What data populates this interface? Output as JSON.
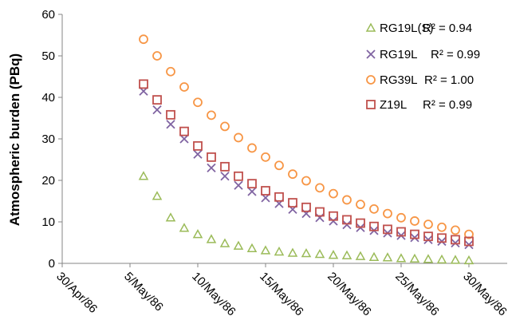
{
  "chart_data": {
    "type": "scatter",
    "title": "",
    "xlabel": "",
    "ylabel": "Atmospheric burden (PBq)",
    "xlim": [
      "1986-04-30",
      "1986-05-30"
    ],
    "ylim": [
      0,
      60
    ],
    "x_tick_labels": [
      "30/Apr/86",
      "5/May/86",
      "10/May/86",
      "15/May/86",
      "20/May/86",
      "25/May/86",
      "30/May/86"
    ],
    "y_tick_labels": [
      "0",
      "10",
      "20",
      "30",
      "40",
      "50",
      "60"
    ],
    "grid": false,
    "legend_position": "top-right",
    "x": [
      "1986-05-06",
      "1986-05-07",
      "1986-05-08",
      "1986-05-09",
      "1986-05-10",
      "1986-05-11",
      "1986-05-12",
      "1986-05-13",
      "1986-05-14",
      "1986-05-15",
      "1986-05-16",
      "1986-05-17",
      "1986-05-18",
      "1986-05-19",
      "1986-05-20",
      "1986-05-21",
      "1986-05-22",
      "1986-05-23",
      "1986-05-24",
      "1986-05-25",
      "1986-05-26",
      "1986-05-27",
      "1986-05-28",
      "1986-05-29",
      "1986-05-30"
    ],
    "series": [
      {
        "name": "RG19L(S)",
        "r2_label": "R² = 0.94",
        "marker": "triangle",
        "color": "#9bbb59",
        "values": [
          21.0,
          16.2,
          11.0,
          8.5,
          7.0,
          5.8,
          4.8,
          4.2,
          3.6,
          3.1,
          2.8,
          2.5,
          2.4,
          2.2,
          2.0,
          1.9,
          1.7,
          1.5,
          1.4,
          1.2,
          1.1,
          1.0,
          0.9,
          0.8,
          0.7
        ]
      },
      {
        "name": "RG19L",
        "r2_label": "R² = 0.99",
        "marker": "x",
        "color": "#8064a2",
        "values": [
          41.5,
          37.0,
          33.5,
          30.0,
          26.3,
          23.0,
          21.0,
          18.8,
          17.3,
          15.8,
          14.4,
          13.0,
          12.0,
          11.0,
          10.2,
          9.3,
          8.6,
          7.9,
          7.3,
          6.7,
          6.2,
          5.7,
          5.3,
          4.9,
          4.5
        ]
      },
      {
        "name": "RG39L",
        "r2_label": "R² = 1.00",
        "marker": "circle",
        "color": "#f79646",
        "values": [
          54.0,
          50.0,
          46.2,
          42.5,
          38.8,
          35.7,
          33.0,
          30.3,
          27.8,
          25.6,
          23.6,
          21.5,
          19.9,
          18.2,
          16.8,
          15.3,
          14.2,
          13.1,
          12.0,
          11.0,
          10.2,
          9.4,
          8.7,
          8.0,
          7.0
        ]
      },
      {
        "name": "Z19L",
        "r2_label": "R² = 0.99",
        "marker": "square",
        "color": "#c0504d",
        "values": [
          43.2,
          39.4,
          35.8,
          31.8,
          28.3,
          25.6,
          23.3,
          21.0,
          19.2,
          17.5,
          16.0,
          14.6,
          13.5,
          12.4,
          11.4,
          10.5,
          9.7,
          8.9,
          8.2,
          7.6,
          7.0,
          6.5,
          6.1,
          5.7,
          5.3
        ]
      }
    ]
  }
}
